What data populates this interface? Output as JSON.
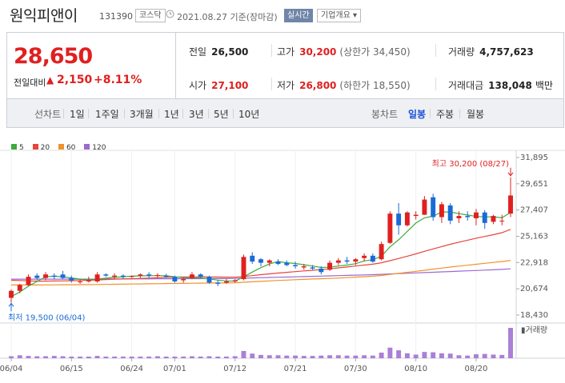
{
  "header": {
    "name": "원익피앤이",
    "code": "131390",
    "market": "코스닥",
    "date": "2021.08.27 기준(장마감)",
    "realtime_button": "실시간",
    "info_button": "기업개요 ▾"
  },
  "quote": {
    "price": "28,650",
    "change_label": "전일대비",
    "change_arrow": "▲",
    "change": "2,150",
    "change_pct": "+8.11%",
    "prev_close_label": "전일",
    "prev_close": "26,500",
    "high_label": "고가",
    "high": "30,200",
    "upper_limit": "(상한가 34,450)",
    "volume_label": "거래량",
    "volume": "4,757,623",
    "open_label": "시가",
    "open": "27,100",
    "low_label": "저가",
    "low": "26,800",
    "lower_limit": "(하한가 18,550)",
    "amount_label": "거래대금",
    "amount": "138,048",
    "amount_unit": "백만"
  },
  "period_tabs": {
    "label": "선차트",
    "items": [
      "1일",
      "1주일",
      "3개월",
      "1년",
      "3년",
      "5년",
      "10년"
    ],
    "candle_label": "봉차트",
    "candle_items": [
      "일봉",
      "주봉",
      "월봉"
    ],
    "active_candle": "일봉"
  },
  "colors": {
    "up": "#e02020",
    "down": "#1a6bd6",
    "ma5": "#3dab3d",
    "ma20": "#e8453c",
    "ma60": "#f0922b",
    "ma120": "#9b6ad0",
    "volume": "#9b6ad0"
  },
  "chart_data": {
    "type": "candlestick",
    "legend": [
      {
        "name": "5",
        "color": "#3dab3d"
      },
      {
        "name": "20",
        "color": "#e8453c"
      },
      {
        "name": "60",
        "color": "#f0922b"
      },
      {
        "name": "120",
        "color": "#9b6ad0"
      }
    ],
    "y_ticks": [
      "31,895",
      "29,651",
      "27,407",
      "25,163",
      "22,918",
      "20,674",
      "18,430"
    ],
    "ylim": [
      18430,
      31895
    ],
    "x_ticks": [
      "06/04",
      "06/15",
      "06/24",
      "07/01",
      "07/12",
      "07/21",
      "07/30",
      "08/10",
      "08/20"
    ],
    "x_tick_index": [
      0,
      7,
      14,
      19,
      26,
      33,
      40,
      47,
      54
    ],
    "high_annotation": "최고 30,200 (08/27)",
    "low_annotation": "최저 19,500 (06/04)",
    "volume_label": "거래량",
    "candles": [
      [
        19900,
        20600,
        19500,
        20500
      ],
      [
        20500,
        21100,
        20300,
        21000
      ],
      [
        21000,
        21900,
        20900,
        21700
      ],
      [
        21800,
        22000,
        21400,
        21600
      ],
      [
        21600,
        22100,
        21400,
        21900
      ],
      [
        21800,
        22000,
        21500,
        21700
      ],
      [
        21900,
        22200,
        21500,
        21600
      ],
      [
        21600,
        21800,
        21200,
        21400
      ],
      [
        21300,
        21500,
        21100,
        21300
      ],
      [
        21300,
        21700,
        21200,
        21400
      ],
      [
        21300,
        22100,
        21200,
        21900
      ],
      [
        21900,
        22000,
        21700,
        21800
      ],
      [
        21700,
        22000,
        21500,
        21800
      ],
      [
        21800,
        21900,
        21500,
        21700
      ],
      [
        21700,
        21800,
        21600,
        21750
      ],
      [
        21800,
        22000,
        21600,
        21900
      ],
      [
        21900,
        22100,
        21600,
        21800
      ],
      [
        21800,
        22000,
        21600,
        21850
      ],
      [
        21800,
        21950,
        21600,
        21700
      ],
      [
        21700,
        21800,
        21200,
        21300
      ],
      [
        21400,
        21600,
        21200,
        21500
      ],
      [
        21600,
        22100,
        21500,
        21900
      ],
      [
        21900,
        22000,
        21600,
        21700
      ],
      [
        21700,
        21800,
        21100,
        21200
      ],
      [
        21200,
        21400,
        20900,
        21100
      ],
      [
        21200,
        21500,
        21100,
        21300
      ],
      [
        21300,
        21500,
        21200,
        21400
      ],
      [
        21500,
        23600,
        21400,
        23400
      ],
      [
        23500,
        23800,
        22800,
        23000
      ],
      [
        23200,
        23300,
        22600,
        22900
      ],
      [
        22900,
        23200,
        22600,
        23100
      ],
      [
        23000,
        23200,
        22700,
        22800
      ],
      [
        22900,
        23100,
        22600,
        22700
      ],
      [
        22700,
        23000,
        22400,
        22600
      ],
      [
        22500,
        22800,
        22300,
        22600
      ],
      [
        22500,
        22700,
        22300,
        22400
      ],
      [
        22400,
        22600,
        21900,
        22100
      ],
      [
        22300,
        23100,
        22200,
        22900
      ],
      [
        22900,
        23300,
        22700,
        23100
      ],
      [
        23100,
        23400,
        22800,
        23000
      ],
      [
        23000,
        23300,
        22700,
        23200
      ],
      [
        23300,
        23700,
        23000,
        23500
      ],
      [
        23500,
        23700,
        22900,
        23000
      ],
      [
        23200,
        24700,
        23100,
        24500
      ],
      [
        24600,
        27300,
        24500,
        27100
      ],
      [
        27100,
        28000,
        25300,
        26100
      ],
      [
        26100,
        27300,
        26000,
        27200
      ],
      [
        26900,
        27300,
        26600,
        27000
      ],
      [
        27000,
        28600,
        27000,
        28300
      ],
      [
        28500,
        28800,
        26500,
        26800
      ],
      [
        26800,
        28100,
        26300,
        27900
      ],
      [
        27800,
        28000,
        26200,
        26500
      ],
      [
        26700,
        27300,
        26300,
        26900
      ],
      [
        26900,
        27300,
        26500,
        26800
      ],
      [
        26700,
        27500,
        26100,
        27200
      ],
      [
        27200,
        27400,
        25800,
        26300
      ],
      [
        26400,
        27000,
        26200,
        26900
      ],
      [
        26500,
        27000,
        26100,
        26500
      ],
      [
        27100,
        30200,
        26800,
        28650
      ]
    ],
    "volumes": [
      6,
      9,
      7,
      6,
      6,
      7,
      6,
      5,
      5,
      5,
      7,
      5,
      5,
      5,
      5,
      5,
      5,
      6,
      5,
      5,
      5,
      6,
      5,
      6,
      5,
      5,
      6,
      22,
      14,
      10,
      9,
      9,
      8,
      8,
      7,
      7,
      8,
      9,
      9,
      8,
      8,
      9,
      8,
      17,
      32,
      24,
      15,
      11,
      19,
      18,
      15,
      14,
      9,
      8,
      12,
      13,
      11,
      10,
      92
    ],
    "ma5": [
      20000,
      20400,
      20900,
      21300,
      21700,
      21750,
      21700,
      21600,
      21500,
      21450,
      21500,
      21580,
      21650,
      21700,
      21750,
      21780,
      21790,
      21800,
      21790,
      21700,
      21620,
      21600,
      21600,
      21520,
      21420,
      21350,
      21320,
      21700,
      22100,
      22480,
      22800,
      23000,
      22900,
      22840,
      22730,
      22620,
      22500,
      22520,
      22620,
      22700,
      22820,
      23060,
      23160,
      23460,
      24260,
      24860,
      25580,
      26300,
      26740,
      26880,
      27240,
      27240,
      27100,
      26980,
      26860,
      26820,
      26820,
      26740,
      27200
    ],
    "ma20": [
      21400,
      21380,
      21350,
      21330,
      21330,
      21340,
      21350,
      21360,
      21380,
      21400,
      21430,
      21460,
      21490,
      21510,
      21530,
      21560,
      21590,
      21620,
      21650,
      21670,
      21690,
      21700,
      21700,
      21690,
      21680,
      21670,
      21660,
      21720,
      21800,
      21880,
      21950,
      22020,
      22080,
      22140,
      22200,
      22260,
      22310,
      22380,
      22460,
      22540,
      22620,
      22700,
      22780,
      22900,
      23080,
      23260,
      23460,
      23660,
      23880,
      24080,
      24280,
      24480,
      24660,
      24830,
      25000,
      25150,
      25300,
      25470,
      25750
    ],
    "ma60": [
      21000,
      21000,
      21000,
      21000,
      21010,
      21010,
      21020,
      21020,
      21030,
      21030,
      21040,
      21050,
      21060,
      21070,
      21080,
      21090,
      21100,
      21110,
      21120,
      21130,
      21140,
      21150,
      21160,
      21170,
      21170,
      21180,
      21190,
      21230,
      21270,
      21310,
      21350,
      21390,
      21420,
      21450,
      21480,
      21510,
      21530,
      21560,
      21590,
      21630,
      21670,
      21710,
      21750,
      21810,
      21900,
      21990,
      22080,
      22170,
      22260,
      22350,
      22440,
      22530,
      22610,
      22690,
      22770,
      22850,
      22930,
      23000,
      23100
    ],
    "ma120": [
      21500,
      21500,
      21500,
      21500,
      21500,
      21500,
      21500,
      21500,
      21500,
      21500,
      21500,
      21510,
      21510,
      21510,
      21520,
      21520,
      21520,
      21530,
      21530,
      21530,
      21540,
      21540,
      21540,
      21550,
      21550,
      21550,
      21560,
      21580,
      21600,
      21620,
      21640,
      21660,
      21680,
      21700,
      21720,
      21740,
      21760,
      21780,
      21800,
      21820,
      21840,
      21860,
      21880,
      21910,
      21940,
      21970,
      22000,
      22030,
      22060,
      22090,
      22120,
      22150,
      22180,
      22210,
      22240,
      22270,
      22300,
      22330,
      22380
    ]
  }
}
